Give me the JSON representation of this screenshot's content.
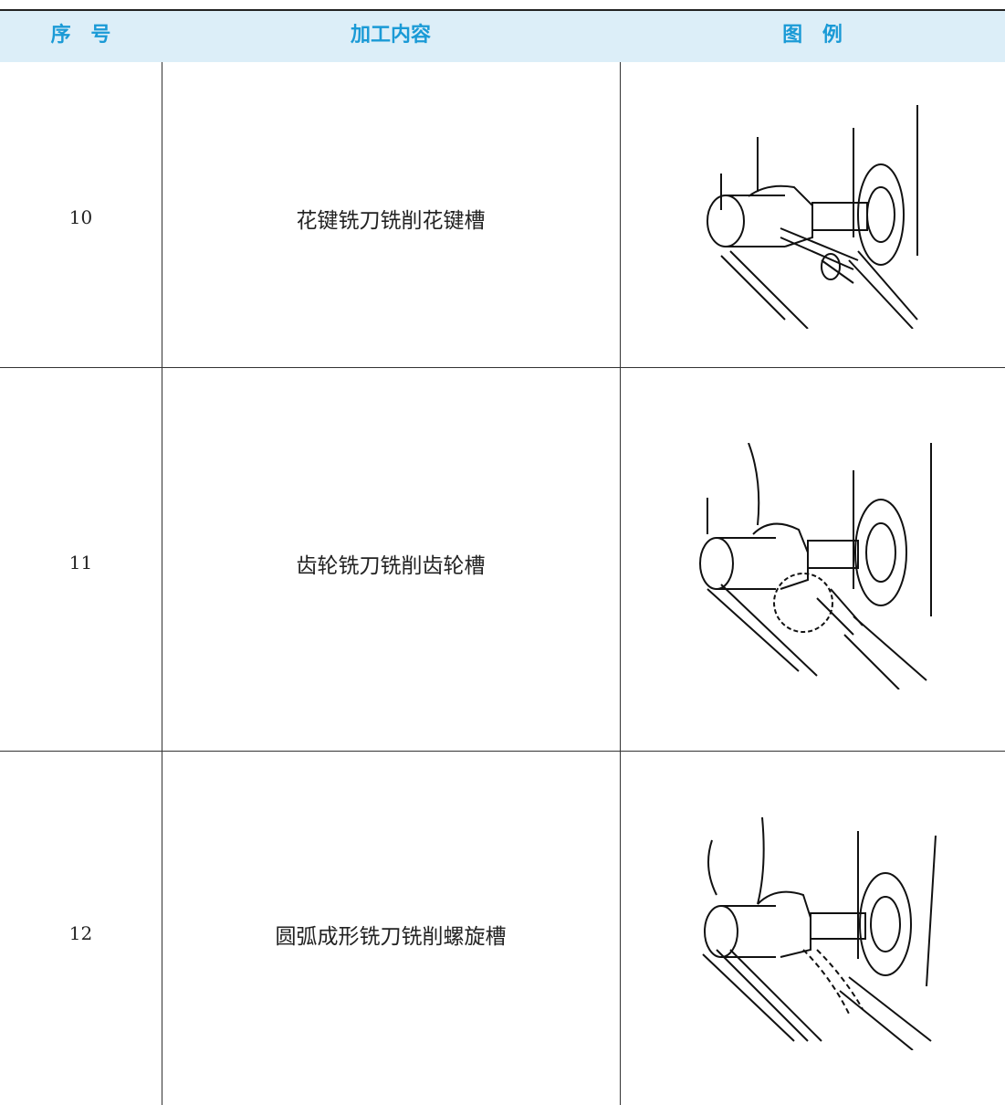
{
  "table": {
    "header": [
      "序 号",
      "加工内容",
      "图 例"
    ],
    "rows": [
      [
        "10",
        "花键铣刀铣削花键槽"
      ],
      [
        "11",
        "齿轮铣刀铣削齿轮槽"
      ],
      [
        "12",
        "圆弧成形铣刀铣削螺旋槽"
      ]
    ]
  }
}
